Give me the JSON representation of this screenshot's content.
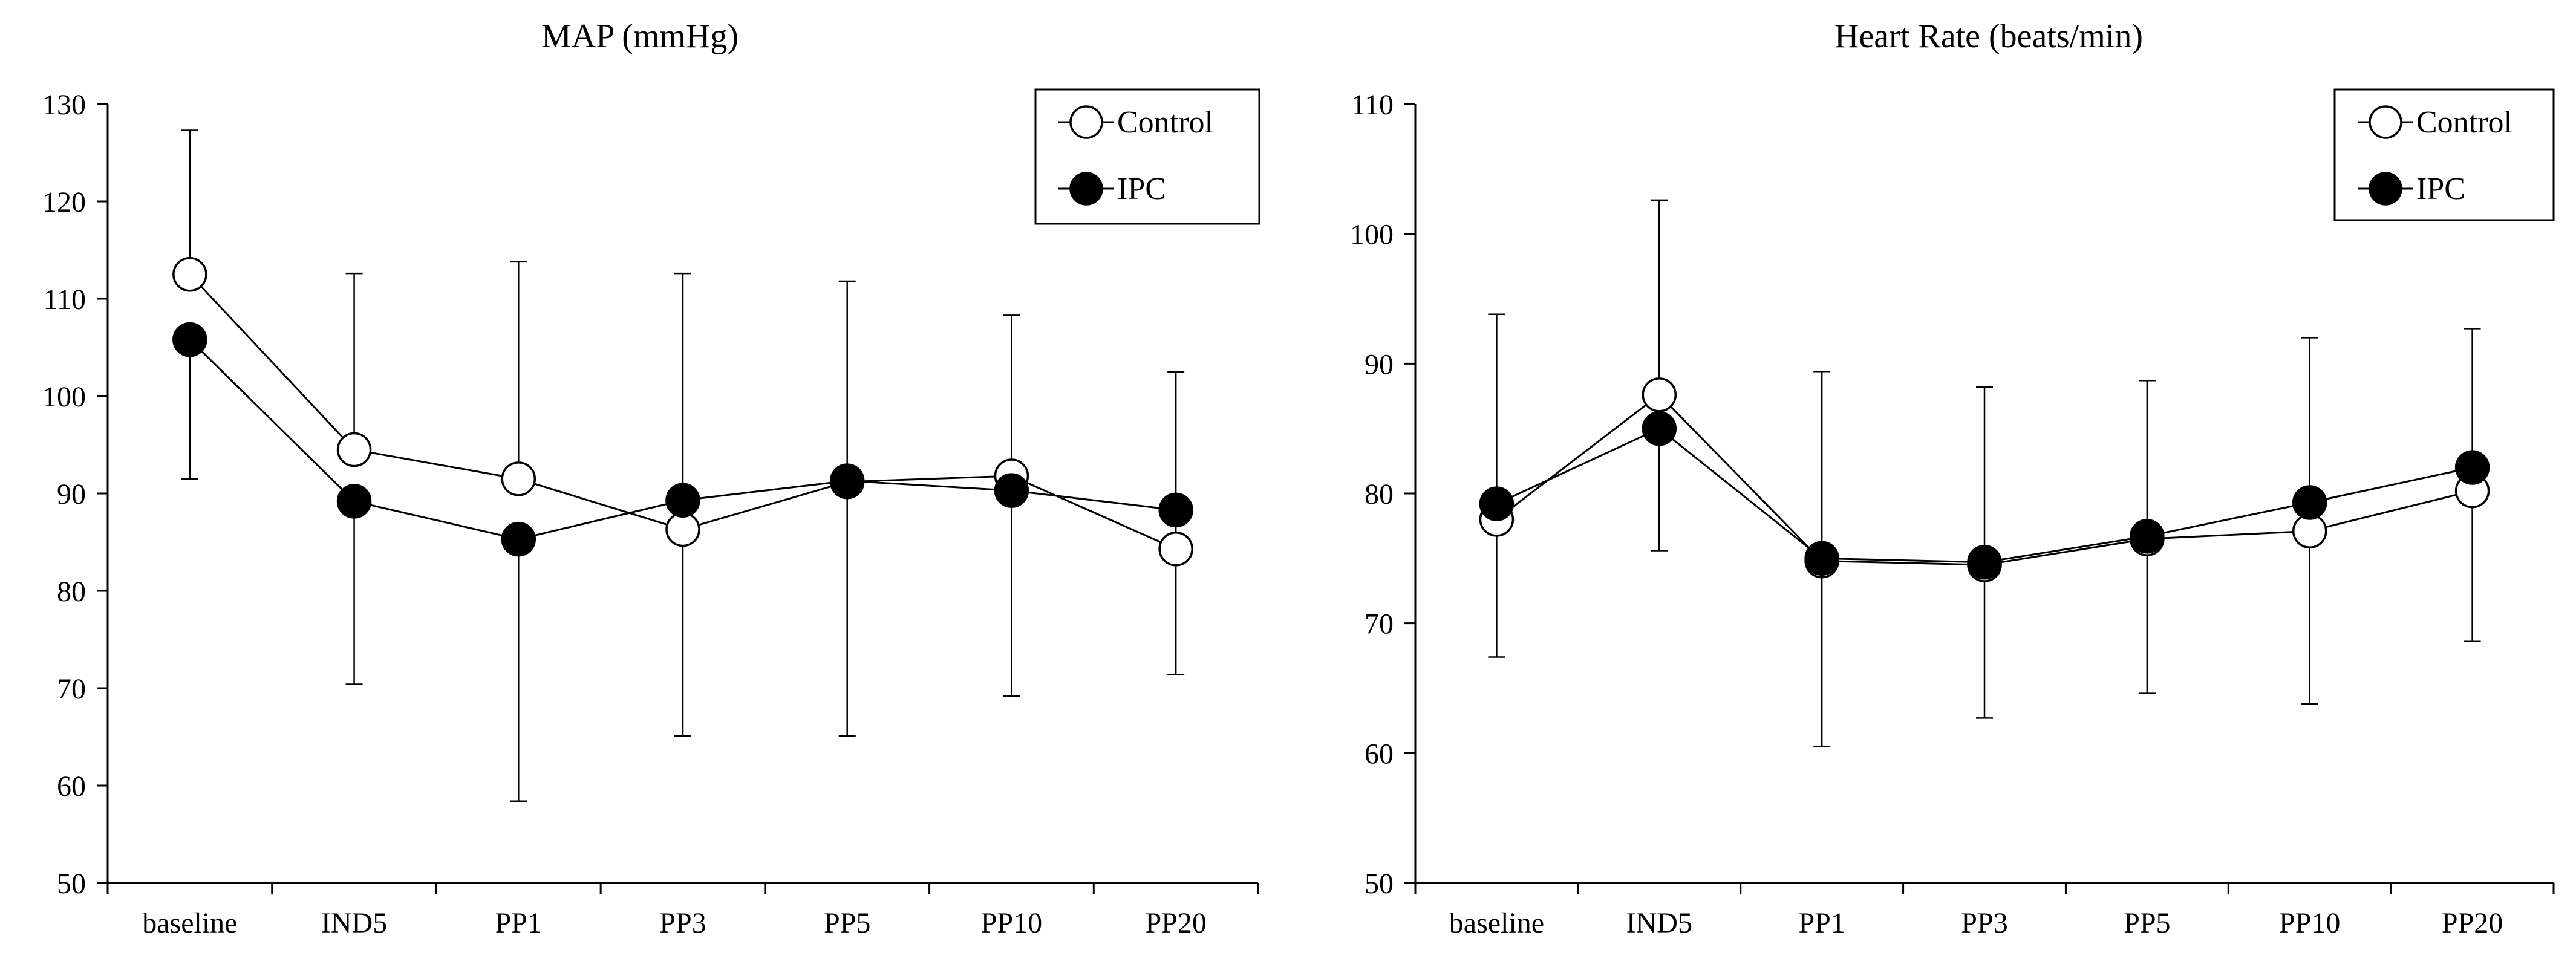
{
  "chart_data": [
    {
      "type": "line",
      "title": "MAP (mmHg)",
      "xlabel": "",
      "ylabel": "",
      "categories": [
        "baseline",
        "IND5",
        "PP1",
        "PP3",
        "PP5",
        "PP10",
        "PP20"
      ],
      "ylim": [
        50,
        130
      ],
      "yticks": [
        50,
        60,
        70,
        80,
        90,
        100,
        110,
        120,
        130
      ],
      "grid": false,
      "legend_position": "top-right",
      "error_bars": true,
      "series": [
        {
          "name": "Control",
          "marker": "open-circle",
          "values": [
            112.5,
            94.5,
            91.5,
            86.3,
            91.2,
            91.8,
            84.3
          ],
          "err_upper": [
            127.3,
            112.6,
            113.8,
            112.6,
            111.8,
            108.3,
            102.5
          ],
          "err_lower": null
        },
        {
          "name": "IPC",
          "marker": "filled-circle",
          "values": [
            105.8,
            89.2,
            85.3,
            89.3,
            91.3,
            90.3,
            88.3
          ],
          "err_upper": null,
          "err_lower": [
            91.5,
            70.4,
            58.4,
            65.1,
            65.1,
            69.2,
            71.4
          ]
        }
      ]
    },
    {
      "type": "line",
      "title": "Heart Rate (beats/min)",
      "xlabel": "",
      "ylabel": "",
      "categories": [
        "baseline",
        "IND5",
        "PP1",
        "PP3",
        "PP5",
        "PP10",
        "PP20"
      ],
      "ylim": [
        50,
        110
      ],
      "yticks": [
        50,
        60,
        70,
        80,
        90,
        100,
        110
      ],
      "grid": false,
      "legend_position": "top-right",
      "error_bars": true,
      "series": [
        {
          "name": "Control",
          "marker": "open-circle",
          "values": [
            78.0,
            87.6,
            74.8,
            74.5,
            76.5,
            77.1,
            80.2
          ],
          "err_upper": [
            93.8,
            102.6,
            89.4,
            88.2,
            88.7,
            92.0,
            92.7
          ],
          "err_lower": null
        },
        {
          "name": "IPC",
          "marker": "filled-circle",
          "values": [
            79.2,
            85.0,
            75.0,
            74.7,
            76.7,
            79.3,
            82.0
          ],
          "err_upper": null,
          "err_lower": [
            67.4,
            75.6,
            60.5,
            62.7,
            64.6,
            63.8,
            68.6
          ]
        }
      ]
    }
  ]
}
